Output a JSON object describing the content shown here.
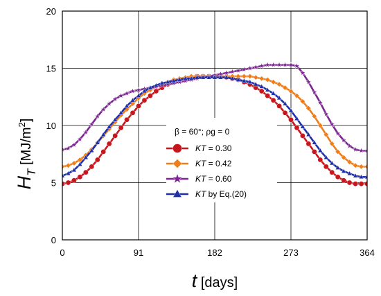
{
  "chart_data": {
    "type": "line",
    "title": "",
    "xlabel": {
      "symbol": "t",
      "unit": "[days]"
    },
    "ylabel": {
      "symbol": "H",
      "subscript": "T",
      "unit_prefix": "[MJ/m",
      "unit_exp": "2",
      "unit_suffix": "]"
    },
    "xlim": [
      0,
      364
    ],
    "ylim": [
      0,
      20
    ],
    "xticks": [
      0,
      91,
      182,
      273,
      364
    ],
    "yticks": [
      0,
      5,
      10,
      15,
      20
    ],
    "grid": true,
    "legend": {
      "placement": "center",
      "header": "β = 60°;  ρg = 0"
    },
    "x": [
      0,
      7,
      14,
      21,
      28,
      35,
      42,
      49,
      56,
      63,
      70,
      77,
      84,
      91,
      98,
      105,
      112,
      119,
      126,
      133,
      140,
      147,
      154,
      161,
      168,
      175,
      182,
      189,
      196,
      203,
      210,
      217,
      224,
      231,
      238,
      245,
      252,
      259,
      266,
      273,
      280,
      287,
      294,
      301,
      308,
      315,
      322,
      329,
      336,
      343,
      350,
      357,
      364
    ],
    "series": [
      {
        "name_var": "KT",
        "name_rest": " = 0.30",
        "color": "#c8161d",
        "marker": "circle",
        "values": [
          4.9,
          5.0,
          5.2,
          5.5,
          5.9,
          6.4,
          7.0,
          7.7,
          8.4,
          9.1,
          9.8,
          10.5,
          11.1,
          11.7,
          12.2,
          12.6,
          13.0,
          13.3,
          13.6,
          13.8,
          14.0,
          14.1,
          14.2,
          14.3,
          14.3,
          14.3,
          14.3,
          14.3,
          14.2,
          14.1,
          14.0,
          13.8,
          13.6,
          13.3,
          13.0,
          12.6,
          12.2,
          11.7,
          11.1,
          10.5,
          9.8,
          9.1,
          8.4,
          7.7,
          7.0,
          6.4,
          5.9,
          5.5,
          5.2,
          5.0,
          4.9,
          4.9,
          4.9
        ]
      },
      {
        "name_var": "KT",
        "name_rest": " = 0.42",
        "color": "#ef7d1a",
        "marker": "diamond",
        "values": [
          6.4,
          6.5,
          6.7,
          7.0,
          7.4,
          7.9,
          8.5,
          9.1,
          9.7,
          10.3,
          10.9,
          11.4,
          11.9,
          12.4,
          12.8,
          13.1,
          13.4,
          13.6,
          13.8,
          14.0,
          14.1,
          14.2,
          14.3,
          14.3,
          14.3,
          14.3,
          14.3,
          14.3,
          14.3,
          14.3,
          14.3,
          14.3,
          14.3,
          14.2,
          14.1,
          14.0,
          13.8,
          13.6,
          13.3,
          13.0,
          12.6,
          12.1,
          11.5,
          10.8,
          10.0,
          9.2,
          8.4,
          7.7,
          7.2,
          6.8,
          6.5,
          6.4,
          6.4
        ]
      },
      {
        "name_var": "KT",
        "name_rest": " = 0.60",
        "color": "#7b2591",
        "marker": "star",
        "values": [
          7.9,
          8.0,
          8.3,
          8.8,
          9.4,
          10.1,
          10.8,
          11.4,
          11.9,
          12.3,
          12.6,
          12.8,
          13.0,
          13.1,
          13.2,
          13.3,
          13.4,
          13.5,
          13.6,
          13.7,
          13.8,
          13.9,
          14.0,
          14.1,
          14.2,
          14.3,
          14.4,
          14.5,
          14.6,
          14.7,
          14.8,
          14.9,
          15.0,
          15.1,
          15.2,
          15.3,
          15.3,
          15.3,
          15.3,
          15.3,
          15.2,
          14.6,
          13.8,
          12.9,
          12.0,
          11.0,
          10.1,
          9.3,
          8.7,
          8.2,
          7.9,
          7.8,
          7.8
        ]
      },
      {
        "name_var": "KT",
        "name_rest": " by Eq.(20)",
        "color": "#1f2fa8",
        "marker": "triangle",
        "values": [
          5.6,
          5.8,
          6.1,
          6.6,
          7.2,
          7.8,
          8.5,
          9.2,
          9.9,
          10.5,
          11.1,
          11.7,
          12.2,
          12.6,
          13.0,
          13.3,
          13.5,
          13.7,
          13.8,
          13.9,
          14.0,
          14.1,
          14.1,
          14.2,
          14.2,
          14.2,
          14.2,
          14.2,
          14.2,
          14.1,
          14.0,
          13.9,
          13.8,
          13.6,
          13.4,
          13.1,
          12.8,
          12.4,
          11.9,
          11.3,
          10.6,
          9.9,
          9.2,
          8.5,
          7.8,
          7.2,
          6.7,
          6.3,
          6.0,
          5.8,
          5.6,
          5.5,
          5.5
        ]
      }
    ]
  }
}
